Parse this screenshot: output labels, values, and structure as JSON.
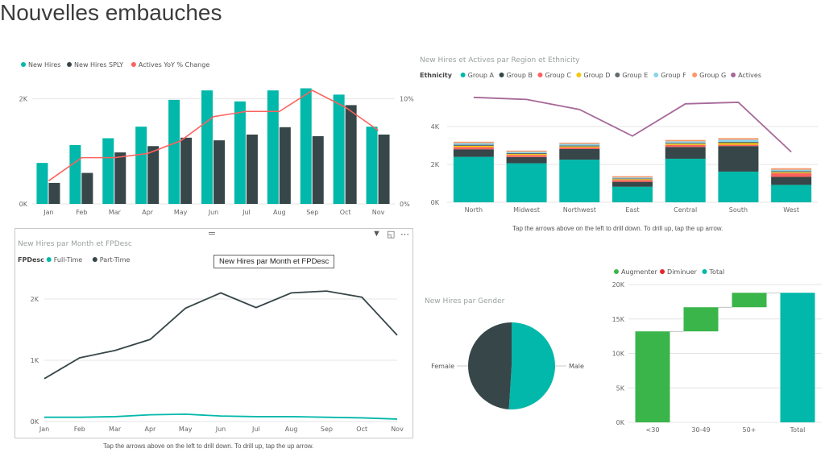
{
  "page": {
    "title": "Nouvelles embauches"
  },
  "notes": {
    "drill_hint": "Tap the arrows above on the left to drill down. To drill up, tap the up arrow."
  },
  "visual_header": {
    "filter_icon": "filter-icon",
    "focus_icon": "focus-mode-icon",
    "more_icon": "more-options-icon",
    "drag_icon": "drag-handle-icon"
  },
  "tooltip": {
    "text": "New Hires par Month et FPDesc"
  },
  "chart_data": [
    {
      "id": "combo",
      "type": "bar",
      "title": "",
      "legend": {
        "position": "top-left",
        "items": [
          "New Hires",
          "New Hires SPLY",
          "Actives YoY % Change"
        ]
      },
      "categories": [
        "Jan",
        "Feb",
        "Mar",
        "Apr",
        "May",
        "Jun",
        "Jul",
        "Aug",
        "Sep",
        "Oct",
        "Nov"
      ],
      "series": [
        {
          "name": "New Hires",
          "kind": "bar",
          "color": "#01b8aa",
          "values": [
            780,
            1120,
            1250,
            1470,
            1980,
            2160,
            1950,
            2160,
            2200,
            2080,
            1470
          ]
        },
        {
          "name": "New Hires SPLY",
          "kind": "bar",
          "color": "#374649",
          "values": [
            400,
            590,
            980,
            1100,
            1260,
            1210,
            1320,
            1460,
            1290,
            1880,
            1320
          ]
        },
        {
          "name": "Actives YoY % Change",
          "kind": "line",
          "axis": "secondary",
          "color": "#fd625e",
          "values": [
            2.2,
            4.4,
            4.4,
            4.8,
            6.0,
            8.3,
            8.8,
            8.8,
            10.8,
            9.2,
            7.0
          ]
        }
      ],
      "ylim": [
        0,
        2500
      ],
      "yticks": [
        0,
        2000
      ],
      "ytick_labels": [
        "0K",
        "2K"
      ],
      "y2lim": [
        0,
        12.5
      ],
      "y2ticks": [
        0,
        10
      ],
      "y2tick_labels": [
        "0%",
        "10%"
      ],
      "grid": true
    },
    {
      "id": "region",
      "type": "bar",
      "title": "New Hires et Actives par Region et Ethnicity",
      "legend": {
        "position": "top-left",
        "title": "Ethnicity",
        "items": [
          "Group A",
          "Group B",
          "Group C",
          "Group D",
          "Group E",
          "Group F",
          "Group G",
          "Actives"
        ]
      },
      "categories": [
        "North",
        "Midwest",
        "Northwest",
        "East",
        "Central",
        "South",
        "West"
      ],
      "stacked": true,
      "series": [
        {
          "name": "Group A",
          "color": "#01b8aa",
          "values": [
            2400,
            2060,
            2250,
            820,
            2300,
            1620,
            920
          ]
        },
        {
          "name": "Group B",
          "color": "#374649",
          "values": [
            400,
            330,
            560,
            260,
            620,
            1350,
            420
          ]
        },
        {
          "name": "Group C",
          "color": "#fd625e",
          "values": [
            120,
            110,
            90,
            100,
            110,
            70,
            200
          ]
        },
        {
          "name": "Group D",
          "color": "#f2c80f",
          "values": [
            60,
            50,
            50,
            40,
            60,
            90,
            50
          ]
        },
        {
          "name": "Group E",
          "color": "#5f6b6d",
          "values": [
            60,
            50,
            50,
            40,
            50,
            60,
            60
          ]
        },
        {
          "name": "Group F",
          "color": "#8ad4eb",
          "values": [
            90,
            70,
            90,
            50,
            80,
            120,
            70
          ]
        },
        {
          "name": "Group G",
          "color": "#fe9666",
          "values": [
            70,
            60,
            60,
            70,
            70,
            80,
            80
          ]
        },
        {
          "name": "Actives",
          "kind": "line",
          "color": "#a66999",
          "values": [
            5540,
            5430,
            4900,
            3500,
            5200,
            5280,
            2660
          ]
        }
      ],
      "ylim": [
        0,
        6000
      ],
      "yticks": [
        0,
        2000,
        4000
      ],
      "ytick_labels": [
        "0K",
        "2K",
        "4K"
      ],
      "grid": true
    },
    {
      "id": "fpdesc",
      "type": "line",
      "title": "New Hires par Month et FPDesc",
      "legend": {
        "position": "top-left",
        "title": "FPDesc",
        "items": [
          "Full-Time",
          "Part-Time"
        ]
      },
      "categories": [
        "Jan",
        "Feb",
        "Mar",
        "Apr",
        "May",
        "Jun",
        "Jul",
        "Aug",
        "Sep",
        "Oct",
        "Nov"
      ],
      "series": [
        {
          "name": "Full-Time",
          "color": "#01b8aa",
          "values": [
            70,
            70,
            80,
            110,
            120,
            90,
            80,
            80,
            70,
            60,
            40
          ]
        },
        {
          "name": "Part-Time",
          "color": "#374649",
          "values": [
            700,
            1040,
            1160,
            1340,
            1850,
            2100,
            1860,
            2100,
            2130,
            2030,
            1410
          ]
        }
      ],
      "ylim": [
        0,
        2250
      ],
      "yticks": [
        0,
        1000,
        2000
      ],
      "ytick_labels": [
        "0K",
        "1K",
        "2K"
      ],
      "grid": true
    },
    {
      "id": "gender",
      "type": "pie",
      "title": "New Hires par Gender",
      "categories": [
        "Male",
        "Female"
      ],
      "values": [
        51,
        49
      ],
      "colors": [
        "#01b8aa",
        "#374649"
      ]
    },
    {
      "id": "waterfall",
      "type": "bar",
      "title": "",
      "legend": {
        "position": "top-left",
        "items": [
          "Augmenter",
          "Diminuer",
          "Total"
        ]
      },
      "legend_colors": [
        "#3ab54a",
        "#e8232e",
        "#01b8aa"
      ],
      "categories": [
        "<30",
        "30-49",
        "50+",
        "Total"
      ],
      "values": [
        13200,
        3500,
        2100,
        18800
      ],
      "ylim": [
        0,
        20000
      ],
      "yticks": [
        0,
        5000,
        10000,
        15000,
        20000
      ],
      "ytick_labels": [
        "0K",
        "5K",
        "10K",
        "15K",
        "20K"
      ],
      "grid": true
    }
  ]
}
